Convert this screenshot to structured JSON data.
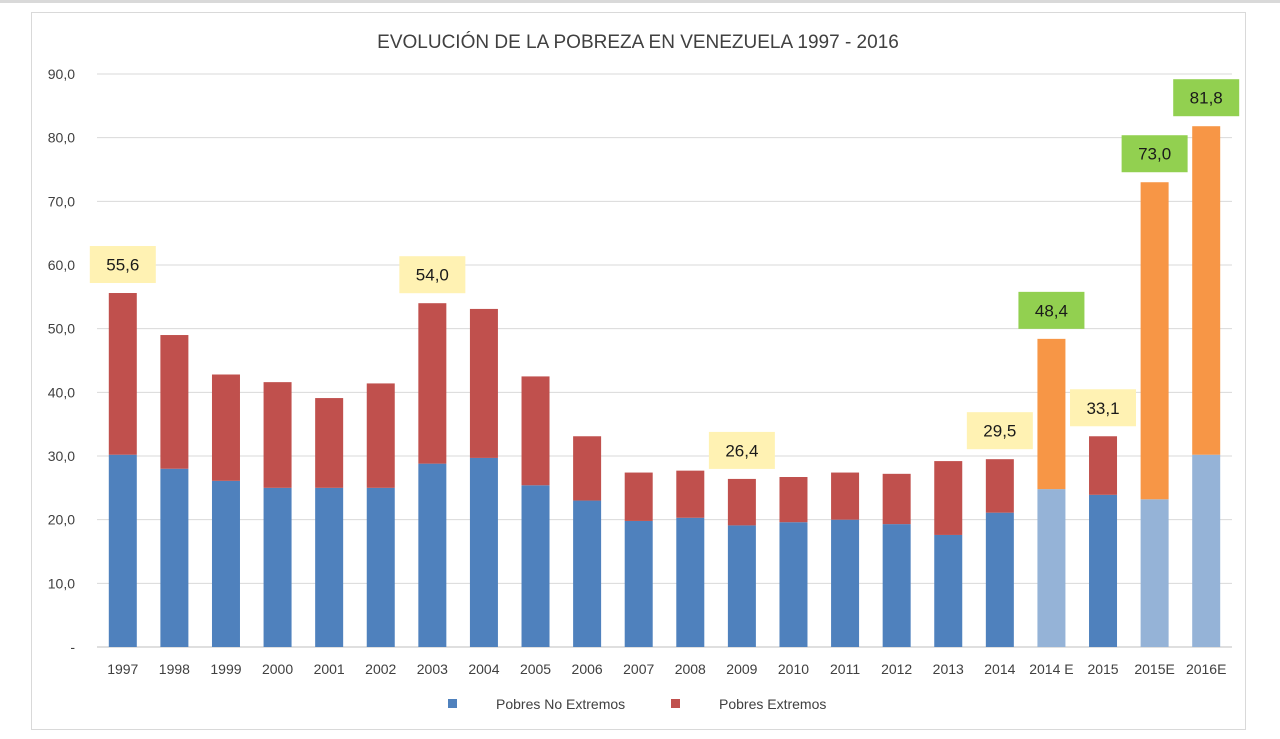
{
  "chart_data": {
    "type": "bar",
    "stacked": true,
    "title": "EVOLUCIÓN DE LA POBREZA EN VENEZUELA 1997 - 2016",
    "xlabel": "",
    "ylabel": "",
    "ylim": [
      0,
      90
    ],
    "yticks": [
      {
        "value": 0,
        "label": "-"
      },
      {
        "value": 10,
        "label": "10,0"
      },
      {
        "value": 20,
        "label": "20,0"
      },
      {
        "value": 30,
        "label": "30,0"
      },
      {
        "value": 40,
        "label": "40,0"
      },
      {
        "value": 50,
        "label": "50,0"
      },
      {
        "value": 60,
        "label": "60,0"
      },
      {
        "value": 70,
        "label": "70,0"
      },
      {
        "value": 80,
        "label": "80,0"
      },
      {
        "value": 90,
        "label": "90,0"
      }
    ],
    "grid": true,
    "categories": [
      "1997",
      "1998",
      "1999",
      "2000",
      "2001",
      "2002",
      "2003",
      "2004",
      "2005",
      "2006",
      "2007",
      "2008",
      "2009",
      "2010",
      "2011",
      "2012",
      "2013",
      "2014",
      "2014 E",
      "2015",
      "2015E",
      "2016E"
    ],
    "series": [
      {
        "name": "Pobres No Extremos",
        "values": [
          30.2,
          28.0,
          26.1,
          25.0,
          25.0,
          25.0,
          28.8,
          29.7,
          25.4,
          23.0,
          19.8,
          20.3,
          19.1,
          19.6,
          20.0,
          19.3,
          17.6,
          21.1,
          24.8,
          23.9,
          23.2,
          30.2
        ]
      },
      {
        "name": "Pobres Extremos",
        "values": [
          25.4,
          21.0,
          16.7,
          16.6,
          14.1,
          16.4,
          25.2,
          23.4,
          17.1,
          10.1,
          7.6,
          7.4,
          7.3,
          7.1,
          7.4,
          7.9,
          11.6,
          8.4,
          23.6,
          9.2,
          49.8,
          51.6
        ]
      }
    ],
    "segment_colors": [
      [
        "#4f81bd",
        "#c0504d"
      ],
      [
        "#4f81bd",
        "#c0504d"
      ],
      [
        "#4f81bd",
        "#c0504d"
      ],
      [
        "#4f81bd",
        "#c0504d"
      ],
      [
        "#4f81bd",
        "#c0504d"
      ],
      [
        "#4f81bd",
        "#c0504d"
      ],
      [
        "#4f81bd",
        "#c0504d"
      ],
      [
        "#4f81bd",
        "#c0504d"
      ],
      [
        "#4f81bd",
        "#c0504d"
      ],
      [
        "#4f81bd",
        "#c0504d"
      ],
      [
        "#4f81bd",
        "#c0504d"
      ],
      [
        "#4f81bd",
        "#c0504d"
      ],
      [
        "#4f81bd",
        "#c0504d"
      ],
      [
        "#4f81bd",
        "#c0504d"
      ],
      [
        "#4f81bd",
        "#c0504d"
      ],
      [
        "#4f81bd",
        "#c0504d"
      ],
      [
        "#4f81bd",
        "#c0504d"
      ],
      [
        "#4f81bd",
        "#c0504d"
      ],
      [
        "#95b3d7",
        "#f79646"
      ],
      [
        "#4f81bd",
        "#c0504d"
      ],
      [
        "#95b3d7",
        "#f79646"
      ],
      [
        "#95b3d7",
        "#f79646"
      ]
    ],
    "annotations": [
      {
        "category": "1997",
        "label": "55,6",
        "style": "yellow"
      },
      {
        "category": "2003",
        "label": "54,0",
        "style": "yellow"
      },
      {
        "category": "2009",
        "label": "26,4",
        "style": "yellow"
      },
      {
        "category": "2014",
        "label": "29,5",
        "style": "yellow"
      },
      {
        "category": "2014 E",
        "label": "48,4",
        "style": "green"
      },
      {
        "category": "2015",
        "label": "33,1",
        "style": "yellow"
      },
      {
        "category": "2015E",
        "label": "73,0",
        "style": "green"
      },
      {
        "category": "2016E",
        "label": "81,8",
        "style": "green"
      }
    ],
    "legend": {
      "position": "bottom",
      "entries": [
        {
          "label": "Pobres No Extremos",
          "color": "#4f81bd"
        },
        {
          "label": "Pobres Extremos",
          "color": "#c0504d"
        }
      ]
    },
    "callout_colors": {
      "yellow": "#fff2b3",
      "green": "#92d050"
    },
    "grid_color": "#d9d9d9",
    "axis_color": "#bfbfbf"
  }
}
